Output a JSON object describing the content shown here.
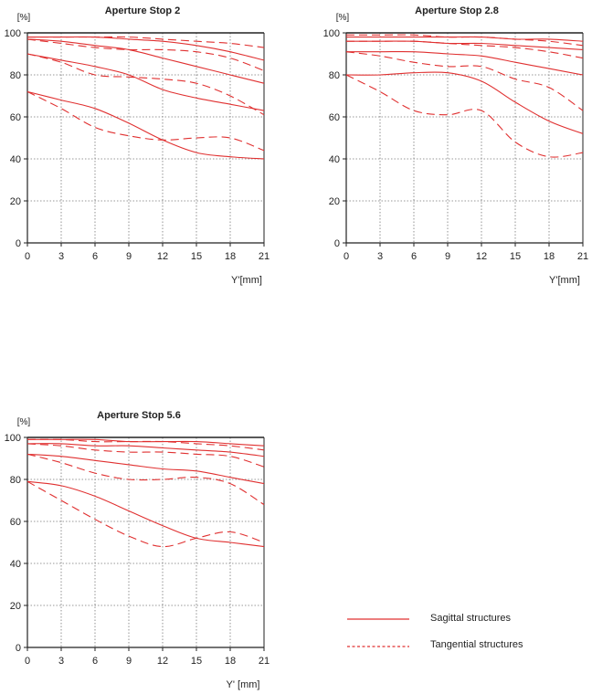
{
  "colors": {
    "curve": "#e03030",
    "axis": "#222222",
    "grid": "#777777"
  },
  "legend": {
    "sagittal_label": "Sagittal structures",
    "tangential_label": "Tangential structures"
  },
  "chart_data": [
    {
      "type": "line",
      "title": "Aperture Stop 2",
      "ylabel": "[%]",
      "xlabel": "Y'[mm]",
      "x_ticks": [
        0,
        3,
        6,
        9,
        12,
        15,
        18,
        21
      ],
      "y_ticks": [
        0,
        20,
        40,
        60,
        80,
        100
      ],
      "xlim": [
        0,
        21
      ],
      "ylim": [
        0,
        100
      ],
      "grid": true,
      "series": [
        {
          "name": "sag-5",
          "style": "solid",
          "x": [
            0,
            3,
            6,
            9,
            12,
            15,
            18,
            21
          ],
          "y": [
            98,
            98,
            98,
            97,
            96,
            94,
            91,
            87
          ]
        },
        {
          "name": "tan-5",
          "style": "dashed",
          "x": [
            0,
            3,
            6,
            9,
            12,
            15,
            18,
            21
          ],
          "y": [
            98,
            98,
            98,
            98,
            97,
            96,
            95,
            93
          ]
        },
        {
          "name": "sag-10",
          "style": "solid",
          "x": [
            0,
            3,
            6,
            9,
            12,
            15,
            18,
            21
          ],
          "y": [
            97,
            96,
            94,
            92,
            88,
            84,
            80,
            76
          ]
        },
        {
          "name": "tan-10",
          "style": "dashed",
          "x": [
            0,
            3,
            6,
            9,
            12,
            15,
            18,
            21
          ],
          "y": [
            97,
            95,
            93,
            92,
            92,
            91,
            88,
            82
          ]
        },
        {
          "name": "sag-20",
          "style": "solid",
          "x": [
            0,
            3,
            6,
            9,
            12,
            15,
            18,
            21
          ],
          "y": [
            90,
            87,
            84,
            80,
            73,
            69,
            66,
            63
          ]
        },
        {
          "name": "tan-20",
          "style": "dashed",
          "x": [
            0,
            3,
            6,
            9,
            12,
            15,
            18,
            21
          ],
          "y": [
            90,
            86,
            80,
            79,
            78,
            76,
            70,
            61
          ]
        },
        {
          "name": "sag-40",
          "style": "solid",
          "x": [
            0,
            3,
            6,
            9,
            12,
            15,
            18,
            21
          ],
          "y": [
            72,
            68,
            64,
            57,
            49,
            43,
            41,
            40
          ]
        },
        {
          "name": "tan-40",
          "style": "dashed",
          "x": [
            0,
            3,
            6,
            9,
            12,
            15,
            18,
            21
          ],
          "y": [
            72,
            64,
            55,
            51,
            49,
            50,
            50,
            44
          ]
        }
      ]
    },
    {
      "type": "line",
      "title": "Aperture Stop 2.8",
      "ylabel": "[%]",
      "xlabel": "Y'[mm]",
      "x_ticks": [
        0,
        3,
        6,
        9,
        12,
        15,
        18,
        21
      ],
      "y_ticks": [
        0,
        20,
        40,
        60,
        80,
        100
      ],
      "xlim": [
        0,
        21
      ],
      "ylim": [
        0,
        100
      ],
      "grid": true,
      "series": [
        {
          "name": "sag-5",
          "style": "solid",
          "x": [
            0,
            3,
            6,
            9,
            12,
            15,
            18,
            21
          ],
          "y": [
            98,
            98,
            98,
            98,
            98,
            97,
            97,
            96
          ]
        },
        {
          "name": "tan-5",
          "style": "dashed",
          "x": [
            0,
            3,
            6,
            9,
            12,
            15,
            18,
            21
          ],
          "y": [
            99,
            99,
            99,
            98,
            98,
            97,
            96,
            94
          ]
        },
        {
          "name": "sag-10",
          "style": "solid",
          "x": [
            0,
            3,
            6,
            9,
            12,
            15,
            18,
            21
          ],
          "y": [
            96,
            96,
            96,
            95,
            95,
            94,
            93,
            92
          ]
        },
        {
          "name": "tan-10",
          "style": "dashed",
          "x": [
            0,
            3,
            6,
            9,
            12,
            15,
            18,
            21
          ],
          "y": [
            96,
            96,
            96,
            95,
            94,
            93,
            91,
            88
          ]
        },
        {
          "name": "sag-20",
          "style": "solid",
          "x": [
            0,
            3,
            6,
            9,
            12,
            15,
            18,
            21
          ],
          "y": [
            91,
            91,
            91,
            90,
            89,
            86,
            83,
            80
          ]
        },
        {
          "name": "tan-20",
          "style": "dashed",
          "x": [
            0,
            3,
            6,
            9,
            12,
            15,
            18,
            21
          ],
          "y": [
            91,
            89,
            86,
            84,
            84,
            78,
            74,
            63
          ]
        },
        {
          "name": "sag-40",
          "style": "solid",
          "x": [
            0,
            3,
            6,
            9,
            12,
            15,
            18,
            21
          ],
          "y": [
            80,
            80,
            81,
            81,
            77,
            67,
            58,
            52
          ]
        },
        {
          "name": "tan-40",
          "style": "dashed",
          "x": [
            0,
            3,
            6,
            9,
            12,
            15,
            18,
            21
          ],
          "y": [
            80,
            72,
            63,
            61,
            63,
            48,
            41,
            43
          ]
        }
      ]
    },
    {
      "type": "line",
      "title": "Aperture Stop 5.6",
      "ylabel": "[%]",
      "xlabel": "Y' [mm]",
      "x_ticks": [
        0,
        3,
        6,
        9,
        12,
        15,
        18,
        21
      ],
      "y_ticks": [
        0,
        20,
        40,
        60,
        80,
        100
      ],
      "xlim": [
        0,
        21
      ],
      "ylim": [
        0,
        100
      ],
      "grid": true,
      "series": [
        {
          "name": "sag-5",
          "style": "solid",
          "x": [
            0,
            3,
            6,
            9,
            12,
            15,
            18,
            21
          ],
          "y": [
            99,
            99,
            99,
            98,
            98,
            98,
            97,
            96
          ]
        },
        {
          "name": "tan-5",
          "style": "dashed",
          "x": [
            0,
            3,
            6,
            9,
            12,
            15,
            18,
            21
          ],
          "y": [
            99,
            99,
            98,
            98,
            98,
            97,
            96,
            94
          ]
        },
        {
          "name": "sag-10",
          "style": "solid",
          "x": [
            0,
            3,
            6,
            9,
            12,
            15,
            18,
            21
          ],
          "y": [
            97,
            97,
            96,
            96,
            95,
            94,
            93,
            91
          ]
        },
        {
          "name": "tan-10",
          "style": "dashed",
          "x": [
            0,
            3,
            6,
            9,
            12,
            15,
            18,
            21
          ],
          "y": [
            97,
            96,
            94,
            93,
            93,
            92,
            91,
            86
          ]
        },
        {
          "name": "sag-20",
          "style": "solid",
          "x": [
            0,
            3,
            6,
            9,
            12,
            15,
            18,
            21
          ],
          "y": [
            92,
            91,
            89,
            87,
            85,
            84,
            81,
            78
          ]
        },
        {
          "name": "tan-20",
          "style": "dashed",
          "x": [
            0,
            3,
            6,
            9,
            12,
            15,
            18,
            21
          ],
          "y": [
            92,
            88,
            83,
            80,
            80,
            81,
            78,
            68
          ]
        },
        {
          "name": "sag-40",
          "style": "solid",
          "x": [
            0,
            3,
            6,
            9,
            12,
            15,
            18,
            21
          ],
          "y": [
            79,
            77,
            72,
            65,
            58,
            52,
            50,
            48
          ]
        },
        {
          "name": "tan-40",
          "style": "dashed",
          "x": [
            0,
            3,
            6,
            9,
            12,
            15,
            18,
            21
          ],
          "y": [
            79,
            70,
            61,
            53,
            48,
            52,
            55,
            50
          ]
        }
      ]
    }
  ]
}
